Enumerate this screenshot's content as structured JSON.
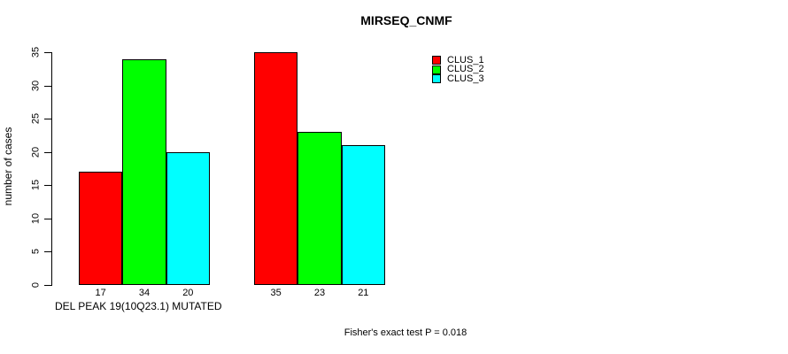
{
  "chart_data": {
    "type": "bar",
    "title": "MIRSEQ_CNMF",
    "ylabel": "number of cases",
    "xlabel": "DEL PEAK 19(10Q23.1) MUTATED",
    "annotation": "Fisher's exact test P = 0.018",
    "ylim": [
      0,
      35
    ],
    "yticks": [
      0,
      5,
      10,
      15,
      20,
      25,
      30,
      35
    ],
    "grid": false,
    "series": [
      {
        "name": "CLUS_1",
        "color": "#ff0000",
        "values": [
          17,
          35
        ]
      },
      {
        "name": "CLUS_2",
        "color": "#00ff00",
        "values": [
          34,
          23
        ]
      },
      {
        "name": "CLUS_3",
        "color": "#00ffff",
        "values": [
          20,
          21
        ]
      }
    ],
    "bar_value_labels": [
      [
        17,
        34,
        20
      ],
      [
        35,
        23,
        21
      ]
    ],
    "legend": {
      "position": "top-right",
      "entries": [
        "CLUS_1",
        "CLUS_2",
        "CLUS_3"
      ]
    }
  }
}
